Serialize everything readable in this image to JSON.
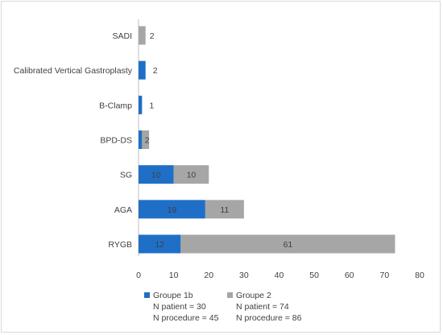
{
  "chart_data": {
    "type": "bar",
    "orientation": "horizontal",
    "stacked": true,
    "categories": [
      "SADI",
      "Calibrated Vertical Gastroplasty",
      "B-Clamp",
      "BPD-DS",
      "SG",
      "AGA",
      "RYGB"
    ],
    "series": [
      {
        "name": "Groupe 1b",
        "legend_lines": [
          "Groupe 1b",
          "N patient = 30",
          "N procedure = 45"
        ],
        "color": "#1f6fc6",
        "values": [
          0,
          2,
          1,
          1,
          10,
          19,
          12
        ],
        "labels": [
          "",
          "2",
          "1",
          "",
          "10",
          "19",
          "12"
        ]
      },
      {
        "name": "Groupe 2",
        "legend_lines": [
          "Groupe 2",
          "N patient = 74",
          "N procedure = 86"
        ],
        "color": "#a6a6a6",
        "values": [
          2,
          0,
          0,
          2,
          10,
          11,
          61
        ],
        "labels": [
          "2",
          "",
          "",
          "2",
          "10",
          "11",
          "61"
        ]
      }
    ],
    "x_ticks": [
      "0",
      "10",
      "20",
      "30",
      "40",
      "50",
      "60",
      "70",
      "80"
    ],
    "xlim": [
      0,
      80
    ],
    "grid": false,
    "legend_position": "bottom",
    "title": "",
    "xlabel": "",
    "ylabel": ""
  }
}
